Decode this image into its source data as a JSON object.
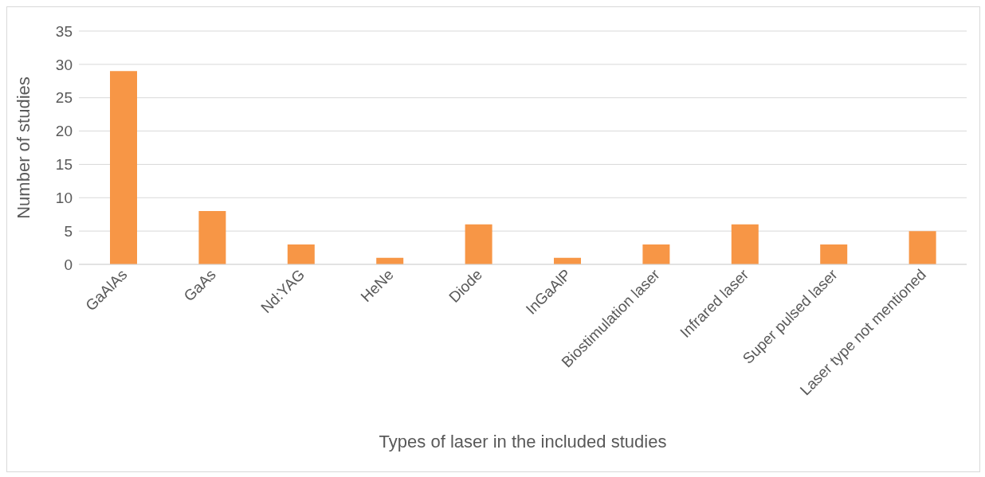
{
  "chart_data": {
    "type": "bar",
    "xlabel": "Types of laser in the included studies",
    "ylabel": "Number of studies",
    "categories": [
      "GaAlAs",
      "GaAs",
      "Nd:YAG",
      "HeNe",
      "Diode",
      "InGaAlP",
      "Biostimulation laser",
      "Infrared laser",
      "Super pulsed laser",
      "Laser type not mentioned"
    ],
    "values": [
      29,
      8,
      3,
      1,
      6,
      1,
      3,
      6,
      3,
      5
    ],
    "color": "#f79646",
    "ylim": [
      0,
      35
    ],
    "yticks": [
      0,
      5,
      10,
      15,
      20,
      25,
      30,
      35
    ],
    "grid": "y"
  }
}
